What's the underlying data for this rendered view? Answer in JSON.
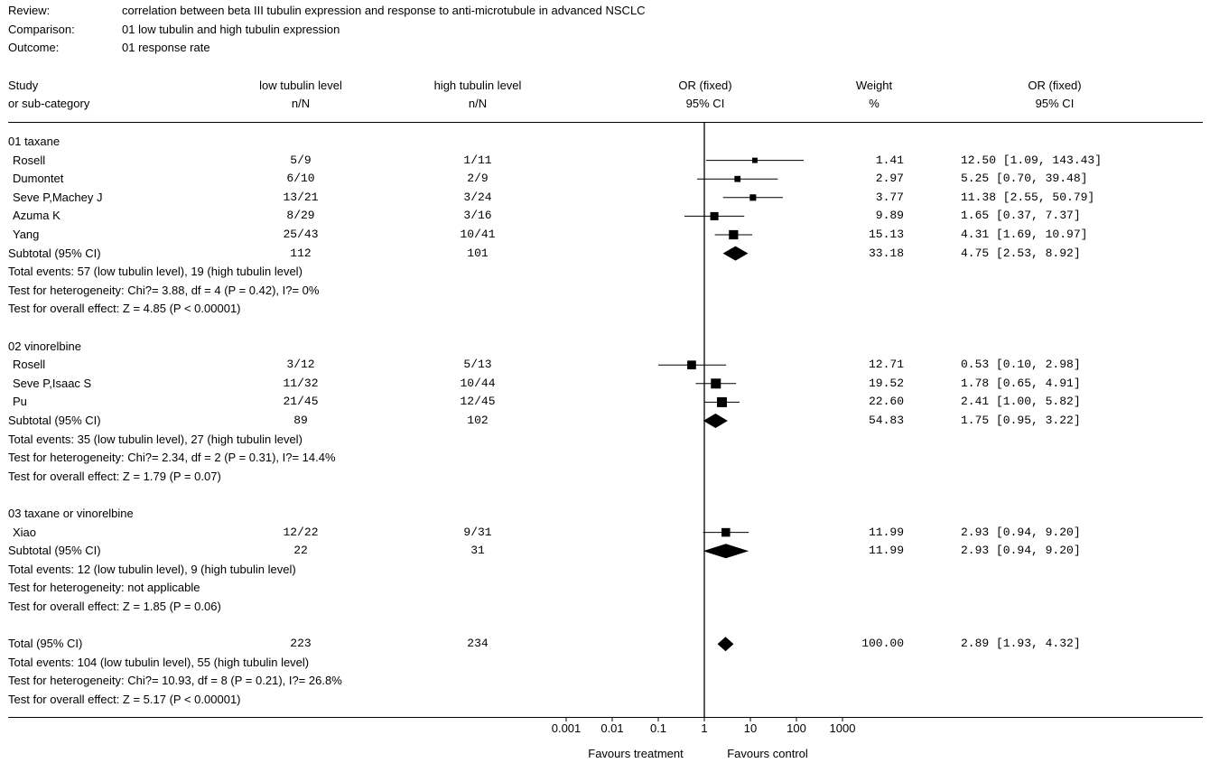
{
  "meta": {
    "review_label": "Review:",
    "review": "correlation between beta III tubulin expression and response to anti-microtubule in advanced NSCLC",
    "comparison_label": "Comparison:",
    "comparison": "01 low tubulin and high tubulin expression",
    "outcome_label": "Outcome:",
    "outcome": "01 response rate"
  },
  "headers": {
    "study": [
      "Study",
      "or sub-category"
    ],
    "low": [
      "low tubulin level",
      "n/N"
    ],
    "high": [
      "high tubulin level",
      "n/N"
    ],
    "or_plot": [
      "OR (fixed)",
      "95% CI"
    ],
    "weight": [
      "Weight",
      "%"
    ],
    "or_text": [
      "OR (fixed)",
      "95% CI"
    ]
  },
  "footer": {
    "favours_left": "Favours treatment",
    "favours_right": "Favours control"
  },
  "chart_data": {
    "type": "forest",
    "x_scale": "log",
    "xlim": [
      0.001,
      1000
    ],
    "x_ticks": [
      "0.001",
      "0.01",
      "0.1",
      "1",
      "10",
      "100",
      "1000"
    ],
    "reference_line": 1,
    "groups": [
      {
        "name": "01 taxane",
        "studies": [
          {
            "study": "Rosell",
            "low": "5/9",
            "high": "1/11",
            "weight": "1.41",
            "or": 12.5,
            "lo": 1.09,
            "hi": 143.43,
            "ci_text": "12.50 [1.09, 143.43]"
          },
          {
            "study": "Dumontet",
            "low": "6/10",
            "high": "2/9",
            "weight": "2.97",
            "or": 5.25,
            "lo": 0.7,
            "hi": 39.48,
            "ci_text": "5.25 [0.70, 39.48]"
          },
          {
            "study": "Seve P,Machey J",
            "low": "13/21",
            "high": "3/24",
            "weight": "3.77",
            "or": 11.38,
            "lo": 2.55,
            "hi": 50.79,
            "ci_text": "11.38 [2.55, 50.79]"
          },
          {
            "study": "Azuma K",
            "low": "8/29",
            "high": "3/16",
            "weight": "9.89",
            "or": 1.65,
            "lo": 0.37,
            "hi": 7.37,
            "ci_text": "1.65 [0.37, 7.37]"
          },
          {
            "study": "Yang",
            "low": "25/43",
            "high": "10/41",
            "weight": "15.13",
            "or": 4.31,
            "lo": 1.69,
            "hi": 10.97,
            "ci_text": "4.31 [1.69, 10.97]"
          }
        ],
        "subtotal": {
          "label": "Subtotal (95% CI)",
          "low": "112",
          "high": "101",
          "weight": "33.18",
          "or": 4.75,
          "lo": 2.53,
          "hi": 8.92,
          "ci_text": "4.75 [2.53, 8.92]"
        },
        "notes": [
          "Total events: 57 (low tubulin level), 19 (high tubulin level)",
          "Test for heterogeneity: Chi?= 3.88, df = 4 (P = 0.42), I?= 0%",
          "Test for overall effect: Z = 4.85 (P < 0.00001)"
        ]
      },
      {
        "name": "02 vinorelbine",
        "studies": [
          {
            "study": "Rosell",
            "low": "3/12",
            "high": "5/13",
            "weight": "12.71",
            "or": 0.53,
            "lo": 0.1,
            "hi": 2.98,
            "ci_text": "0.53 [0.10, 2.98]"
          },
          {
            "study": "Seve P,Isaac S",
            "low": "11/32",
            "high": "10/44",
            "weight": "19.52",
            "or": 1.78,
            "lo": 0.65,
            "hi": 4.91,
            "ci_text": "1.78 [0.65, 4.91]"
          },
          {
            "study": "Pu",
            "low": "21/45",
            "high": "12/45",
            "weight": "22.60",
            "or": 2.41,
            "lo": 1.0,
            "hi": 5.82,
            "ci_text": "2.41 [1.00, 5.82]"
          }
        ],
        "subtotal": {
          "label": "Subtotal (95% CI)",
          "low": "89",
          "high": "102",
          "weight": "54.83",
          "or": 1.75,
          "lo": 0.95,
          "hi": 3.22,
          "ci_text": "1.75 [0.95, 3.22]"
        },
        "notes": [
          "Total events: 35 (low tubulin level), 27 (high tubulin level)",
          "Test for heterogeneity: Chi?= 2.34, df = 2 (P = 0.31), I?= 14.4%",
          "Test for overall effect: Z = 1.79 (P = 0.07)"
        ]
      },
      {
        "name": "03 taxane or vinorelbine",
        "studies": [
          {
            "study": "Xiao",
            "low": "12/22",
            "high": "9/31",
            "weight": "11.99",
            "or": 2.93,
            "lo": 0.94,
            "hi": 9.2,
            "ci_text": "2.93 [0.94, 9.20]"
          }
        ],
        "subtotal": {
          "label": "Subtotal (95% CI)",
          "low": "22",
          "high": "31",
          "weight": "11.99",
          "or": 2.93,
          "lo": 0.94,
          "hi": 9.2,
          "ci_text": "2.93 [0.94, 9.20]"
        },
        "notes": [
          "Total events: 12 (low tubulin level), 9 (high tubulin level)",
          "Test for heterogeneity: not applicable",
          "Test for overall effect: Z = 1.85 (P = 0.06)"
        ]
      }
    ],
    "total": {
      "label": "Total (95% CI)",
      "low": "223",
      "high": "234",
      "weight": "100.00",
      "or": 2.89,
      "lo": 1.93,
      "hi": 4.32,
      "ci_text": "2.89 [1.93, 4.32]",
      "notes": [
        "Total events: 104 (low tubulin level), 55 (high tubulin level)",
        "Test for heterogeneity: Chi?= 10.93, df = 8 (P = 0.21), I?= 26.8%",
        "Test for overall effect: Z = 5.17 (P < 0.00001)"
      ]
    }
  }
}
